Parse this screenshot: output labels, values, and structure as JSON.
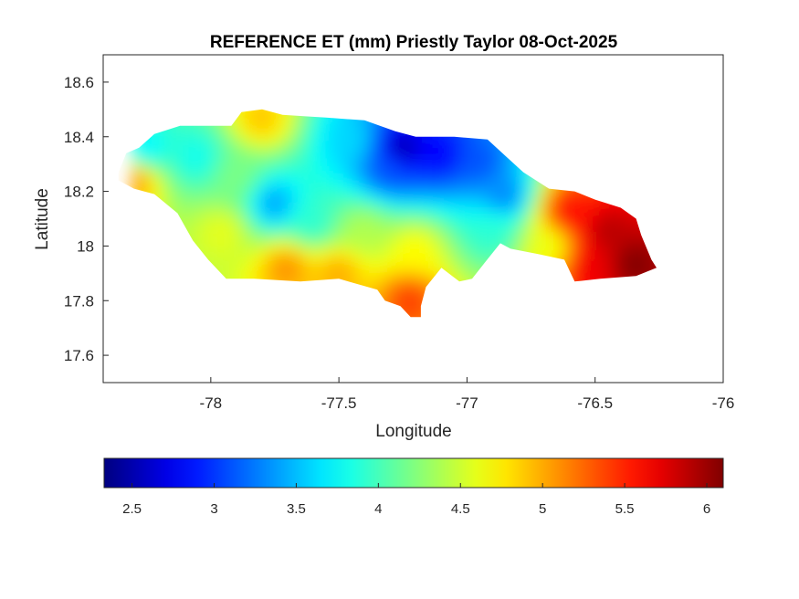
{
  "title": "REFERENCE ET (mm) Priestly Taylor 08-Oct-2025",
  "xlabel": "Longitude",
  "ylabel": "Latitude",
  "chart_data": {
    "type": "heatmap",
    "title": "REFERENCE ET (mm) Priestly Taylor 08-Oct-2025",
    "xlabel": "Longitude",
    "ylabel": "Latitude",
    "xlim": [
      -78.42,
      -76.0
    ],
    "ylim": [
      17.5,
      18.7
    ],
    "xticks": [
      -78,
      -77.5,
      -77,
      -76.5,
      -76
    ],
    "xtick_labels": [
      "-78",
      "-77.5",
      "-77",
      "-76.5",
      "-76"
    ],
    "yticks": [
      17.6,
      17.8,
      18,
      18.2,
      18.4,
      18.6
    ],
    "ytick_labels": [
      "17.6",
      "17.8",
      "18",
      "18.2",
      "18.4",
      "18.6"
    ],
    "grid": false,
    "colormap": "jet",
    "colorbar": {
      "location": "south",
      "limits": [
        2.33,
        6.1
      ],
      "ticks": [
        2.5,
        3,
        3.5,
        4,
        4.5,
        5,
        5.5,
        6
      ],
      "tick_labels": [
        "2.5",
        "3",
        "3.5",
        "4",
        "4.5",
        "5",
        "5.5",
        "6"
      ]
    },
    "outline_lonlat": [
      [
        -78.36,
        18.27
      ],
      [
        -78.33,
        18.34
      ],
      [
        -78.28,
        18.36
      ],
      [
        -78.22,
        18.41
      ],
      [
        -78.12,
        18.44
      ],
      [
        -78.02,
        18.44
      ],
      [
        -77.92,
        18.44
      ],
      [
        -77.88,
        18.49
      ],
      [
        -77.8,
        18.5
      ],
      [
        -77.72,
        18.48
      ],
      [
        -77.55,
        18.47
      ],
      [
        -77.4,
        18.46
      ],
      [
        -77.28,
        18.42
      ],
      [
        -77.2,
        18.4
      ],
      [
        -77.05,
        18.4
      ],
      [
        -76.92,
        18.39
      ],
      [
        -76.85,
        18.33
      ],
      [
        -76.78,
        18.27
      ],
      [
        -76.68,
        18.21
      ],
      [
        -76.58,
        18.2
      ],
      [
        -76.5,
        18.17
      ],
      [
        -76.4,
        18.14
      ],
      [
        -76.34,
        18.1
      ],
      [
        -76.32,
        18.04
      ],
      [
        -76.28,
        17.95
      ],
      [
        -76.26,
        17.92
      ],
      [
        -76.34,
        17.89
      ],
      [
        -76.48,
        17.88
      ],
      [
        -76.58,
        17.87
      ],
      [
        -76.62,
        17.95
      ],
      [
        -76.72,
        17.97
      ],
      [
        -76.83,
        17.99
      ],
      [
        -76.87,
        18.01
      ],
      [
        -76.93,
        17.94
      ],
      [
        -76.98,
        17.88
      ],
      [
        -77.03,
        17.87
      ],
      [
        -77.1,
        17.92
      ],
      [
        -77.16,
        17.85
      ],
      [
        -77.18,
        17.78
      ],
      [
        -77.18,
        17.74
      ],
      [
        -77.22,
        17.74
      ],
      [
        -77.26,
        17.78
      ],
      [
        -77.32,
        17.8
      ],
      [
        -77.35,
        17.84
      ],
      [
        -77.5,
        17.88
      ],
      [
        -77.65,
        17.87
      ],
      [
        -77.83,
        17.88
      ],
      [
        -77.94,
        17.88
      ],
      [
        -78.01,
        17.95
      ],
      [
        -78.07,
        18.02
      ],
      [
        -78.13,
        18.12
      ],
      [
        -78.22,
        18.19
      ],
      [
        -78.3,
        18.21
      ],
      [
        -78.36,
        18.24
      ]
    ],
    "value_field_description_points": [
      {
        "lon": -77.25,
        "lat": 18.35,
        "value": 2.5
      },
      {
        "lon": -77.1,
        "lat": 18.33,
        "value": 2.8
      },
      {
        "lon": -76.95,
        "lat": 18.3,
        "value": 3.1
      },
      {
        "lon": -77.3,
        "lat": 18.28,
        "value": 3.1
      },
      {
        "lon": -76.85,
        "lat": 18.18,
        "value": 3.3
      },
      {
        "lon": -77.75,
        "lat": 18.15,
        "value": 3.4
      },
      {
        "lon": -77.45,
        "lat": 18.38,
        "value": 3.6
      },
      {
        "lon": -78.05,
        "lat": 18.32,
        "value": 3.8
      },
      {
        "lon": -77.6,
        "lat": 18.08,
        "value": 3.9
      },
      {
        "lon": -77.9,
        "lat": 18.25,
        "value": 4.2
      },
      {
        "lon": -77.4,
        "lat": 18.05,
        "value": 4.4
      },
      {
        "lon": -78.25,
        "lat": 18.35,
        "value": 3.7
      },
      {
        "lon": -77.95,
        "lat": 18.05,
        "value": 4.6
      },
      {
        "lon": -77.8,
        "lat": 18.46,
        "value": 4.9
      },
      {
        "lon": -77.2,
        "lat": 17.98,
        "value": 4.7
      },
      {
        "lon": -77.7,
        "lat": 17.92,
        "value": 5.1
      },
      {
        "lon": -77.22,
        "lat": 17.8,
        "value": 5.4
      },
      {
        "lon": -78.3,
        "lat": 18.24,
        "value": 5.1
      },
      {
        "lon": -77.5,
        "lat": 17.9,
        "value": 5.0
      },
      {
        "lon": -76.6,
        "lat": 18.12,
        "value": 5.6
      },
      {
        "lon": -76.45,
        "lat": 18.05,
        "value": 5.9
      },
      {
        "lon": -76.35,
        "lat": 17.93,
        "value": 6.1
      },
      {
        "lon": -76.5,
        "lat": 17.92,
        "value": 5.7
      },
      {
        "lon": -76.68,
        "lat": 18.0,
        "value": 4.6
      },
      {
        "lon": -76.9,
        "lat": 18.05,
        "value": 3.9
      }
    ]
  }
}
